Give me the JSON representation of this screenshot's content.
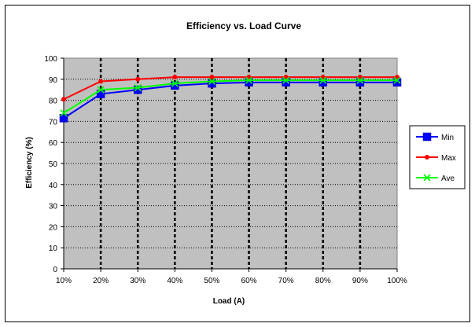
{
  "chart_data": {
    "type": "line",
    "title": "Efficiency vs. Load Curve",
    "xlabel": "Load (A)",
    "ylabel": "Efficiency (%)",
    "categories": [
      "10%",
      "20%",
      "30%",
      "40%",
      "50%",
      "60%",
      "70%",
      "80%",
      "90%",
      "100%"
    ],
    "ylim": [
      0,
      100
    ],
    "yticks": [
      0,
      10,
      20,
      30,
      40,
      50,
      60,
      70,
      80,
      90,
      100
    ],
    "grid": true,
    "legend_position": "right",
    "plot_background": "#c0c0c0",
    "series": [
      {
        "name": "Min",
        "color": "#0000ff",
        "marker": "square",
        "values": [
          71.5,
          83,
          85,
          87,
          88,
          88.5,
          88.5,
          88.5,
          88.5,
          88.5
        ]
      },
      {
        "name": "Max",
        "color": "#ff0000",
        "marker": "circle",
        "values": [
          80.5,
          89,
          90,
          91,
          91,
          91,
          91,
          91,
          91,
          91
        ]
      },
      {
        "name": "Ave",
        "color": "#00ff00",
        "marker": "x",
        "values": [
          74,
          85,
          86,
          88,
          89,
          89.5,
          89.5,
          89.5,
          89.5,
          89.5
        ]
      }
    ]
  }
}
